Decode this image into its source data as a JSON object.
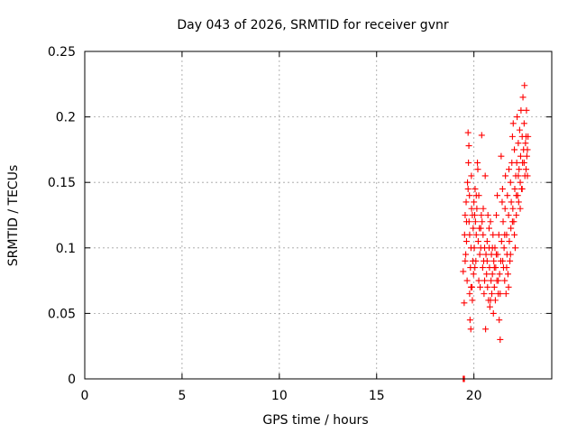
{
  "chart_data": {
    "type": "scatter",
    "title": "Day 043 of 2026, SRMTID for receiver gvnr",
    "xlabel": "GPS time / hours",
    "ylabel": "SRMTID / TECUs",
    "xlim": [
      0,
      24
    ],
    "ylim": [
      0,
      0.25
    ],
    "xticks": [
      "0",
      "5",
      "10",
      "15",
      "20"
    ],
    "yticks": [
      "0",
      "0.05",
      "0.1",
      "0.15",
      "0.2",
      "0.25"
    ],
    "grid": true,
    "marker_color": "#ff0000",
    "series": [
      {
        "marker": "+",
        "points": [
          [
            19.45,
            0.0
          ],
          [
            19.48,
            0.0
          ],
          [
            19.51,
            0.0
          ],
          [
            19.45,
            0.082
          ],
          [
            19.5,
            0.058
          ],
          [
            19.52,
            0.11
          ],
          [
            19.55,
            0.125
          ],
          [
            19.58,
            0.095
          ],
          [
            19.6,
            0.135
          ],
          [
            19.62,
            0.105
          ],
          [
            19.65,
            0.075
          ],
          [
            19.67,
            0.15
          ],
          [
            19.7,
            0.188
          ],
          [
            19.72,
            0.165
          ],
          [
            19.74,
            0.178
          ],
          [
            19.75,
            0.12
          ],
          [
            19.77,
            0.14
          ],
          [
            19.78,
            0.065
          ],
          [
            19.8,
            0.045
          ],
          [
            19.82,
            0.085
          ],
          [
            19.84,
            0.038
          ],
          [
            19.85,
            0.1
          ],
          [
            19.87,
            0.155
          ],
          [
            19.88,
            0.13
          ],
          [
            19.9,
            0.07
          ],
          [
            19.92,
            0.06
          ],
          [
            19.94,
            0.09
          ],
          [
            19.96,
            0.115
          ],
          [
            19.98,
            0.08
          ],
          [
            20.0,
            0.135
          ],
          [
            20.02,
            0.1
          ],
          [
            20.04,
            0.125
          ],
          [
            20.06,
            0.145
          ],
          [
            20.08,
            0.12
          ],
          [
            20.1,
            0.09
          ],
          [
            20.12,
            0.11
          ],
          [
            20.15,
            0.13
          ],
          [
            20.18,
            0.165
          ],
          [
            20.2,
            0.16
          ],
          [
            20.22,
            0.105
          ],
          [
            20.25,
            0.14
          ],
          [
            20.28,
            0.115
          ],
          [
            20.3,
            0.095
          ],
          [
            20.32,
            0.07
          ],
          [
            20.35,
            0.1
          ],
          [
            20.38,
            0.125
          ],
          [
            20.4,
            0.186
          ],
          [
            20.42,
            0.12
          ],
          [
            20.45,
            0.085
          ],
          [
            20.47,
            0.11
          ],
          [
            20.5,
            0.09
          ],
          [
            20.52,
            0.065
          ],
          [
            20.55,
            0.075
          ],
          [
            20.58,
            0.155
          ],
          [
            20.6,
            0.038
          ],
          [
            20.62,
            0.095
          ],
          [
            20.65,
            0.08
          ],
          [
            20.68,
            0.105
          ],
          [
            20.7,
            0.07
          ],
          [
            20.72,
            0.125
          ],
          [
            20.75,
            0.06
          ],
          [
            20.78,
            0.1
          ],
          [
            20.8,
            0.085
          ],
          [
            20.82,
            0.055
          ],
          [
            20.85,
            0.12
          ],
          [
            20.88,
            0.075
          ],
          [
            20.9,
            0.095
          ],
          [
            20.92,
            0.065
          ],
          [
            20.95,
            0.08
          ],
          [
            20.98,
            0.11
          ],
          [
            21.0,
            0.05
          ],
          [
            21.02,
            0.09
          ],
          [
            21.05,
            0.07
          ],
          [
            21.08,
            0.1
          ],
          [
            21.1,
            0.06
          ],
          [
            21.12,
            0.085
          ],
          [
            21.15,
            0.125
          ],
          [
            21.18,
            0.075
          ],
          [
            21.2,
            0.14
          ],
          [
            21.22,
            0.095
          ],
          [
            21.25,
            0.065
          ],
          [
            21.28,
            0.11
          ],
          [
            21.3,
            0.045
          ],
          [
            21.32,
            0.08
          ],
          [
            21.35,
            0.03
          ],
          [
            21.38,
            0.09
          ],
          [
            21.4,
            0.17
          ],
          [
            21.42,
            0.105
          ],
          [
            21.45,
            0.135
          ],
          [
            21.47,
            0.145
          ],
          [
            21.5,
            0.12
          ],
          [
            21.52,
            0.085
          ],
          [
            21.55,
            0.1
          ],
          [
            21.58,
            0.075
          ],
          [
            21.6,
            0.13
          ],
          [
            21.62,
            0.155
          ],
          [
            21.65,
            0.065
          ],
          [
            21.68,
            0.11
          ],
          [
            21.7,
            0.095
          ],
          [
            21.72,
            0.14
          ],
          [
            21.75,
            0.08
          ],
          [
            21.78,
            0.125
          ],
          [
            21.8,
            0.16
          ],
          [
            21.82,
            0.105
          ],
          [
            21.85,
            0.09
          ],
          [
            21.88,
            0.15
          ],
          [
            21.9,
            0.115
          ],
          [
            21.92,
            0.135
          ],
          [
            21.95,
            0.165
          ],
          [
            21.98,
            0.185
          ],
          [
            22.0,
            0.13
          ],
          [
            22.02,
            0.195
          ],
          [
            22.05,
            0.12
          ],
          [
            22.08,
            0.175
          ],
          [
            22.1,
            0.145
          ],
          [
            22.12,
            0.1
          ],
          [
            22.15,
            0.155
          ],
          [
            22.18,
            0.125
          ],
          [
            22.2,
            0.165
          ],
          [
            22.22,
            0.2
          ],
          [
            22.25,
            0.14
          ],
          [
            22.28,
            0.18
          ],
          [
            22.3,
            0.135
          ],
          [
            22.32,
            0.16
          ],
          [
            22.35,
            0.19
          ],
          [
            22.38,
            0.15
          ],
          [
            22.4,
            0.17
          ],
          [
            22.42,
            0.205
          ],
          [
            22.45,
            0.145
          ],
          [
            22.48,
            0.185
          ],
          [
            22.5,
            0.165
          ],
          [
            22.52,
            0.215
          ],
          [
            22.55,
            0.175
          ],
          [
            22.58,
            0.195
          ],
          [
            22.6,
            0.224
          ],
          [
            22.62,
            0.155
          ],
          [
            22.65,
            0.18
          ],
          [
            22.68,
            0.16
          ],
          [
            22.7,
            0.205
          ],
          [
            22.72,
            0.17
          ],
          [
            22.75,
            0.155
          ],
          [
            22.78,
            0.185
          ],
          [
            19.55,
            0.09
          ],
          [
            19.62,
            0.12
          ],
          [
            19.7,
            0.145
          ],
          [
            19.78,
            0.11
          ],
          [
            19.85,
            0.07
          ],
          [
            19.92,
            0.125
          ],
          [
            20.05,
            0.085
          ],
          [
            20.12,
            0.14
          ],
          [
            20.25,
            0.075
          ],
          [
            20.35,
            0.115
          ],
          [
            20.48,
            0.13
          ],
          [
            20.55,
            0.1
          ],
          [
            20.68,
            0.09
          ],
          [
            20.78,
            0.115
          ],
          [
            20.85,
            0.06
          ],
          [
            20.95,
            0.1
          ],
          [
            21.05,
            0.085
          ],
          [
            21.15,
            0.095
          ],
          [
            21.25,
            0.075
          ],
          [
            21.35,
            0.065
          ],
          [
            21.48,
            0.09
          ],
          [
            21.58,
            0.11
          ],
          [
            21.68,
            0.085
          ],
          [
            21.78,
            0.07
          ],
          [
            21.88,
            0.095
          ],
          [
            21.98,
            0.12
          ],
          [
            22.08,
            0.11
          ],
          [
            22.18,
            0.14
          ],
          [
            22.28,
            0.155
          ],
          [
            22.38,
            0.13
          ],
          [
            22.48,
            0.145
          ],
          [
            22.58,
            0.165
          ],
          [
            22.68,
            0.185
          ],
          [
            22.75,
            0.175
          ]
        ]
      }
    ]
  }
}
